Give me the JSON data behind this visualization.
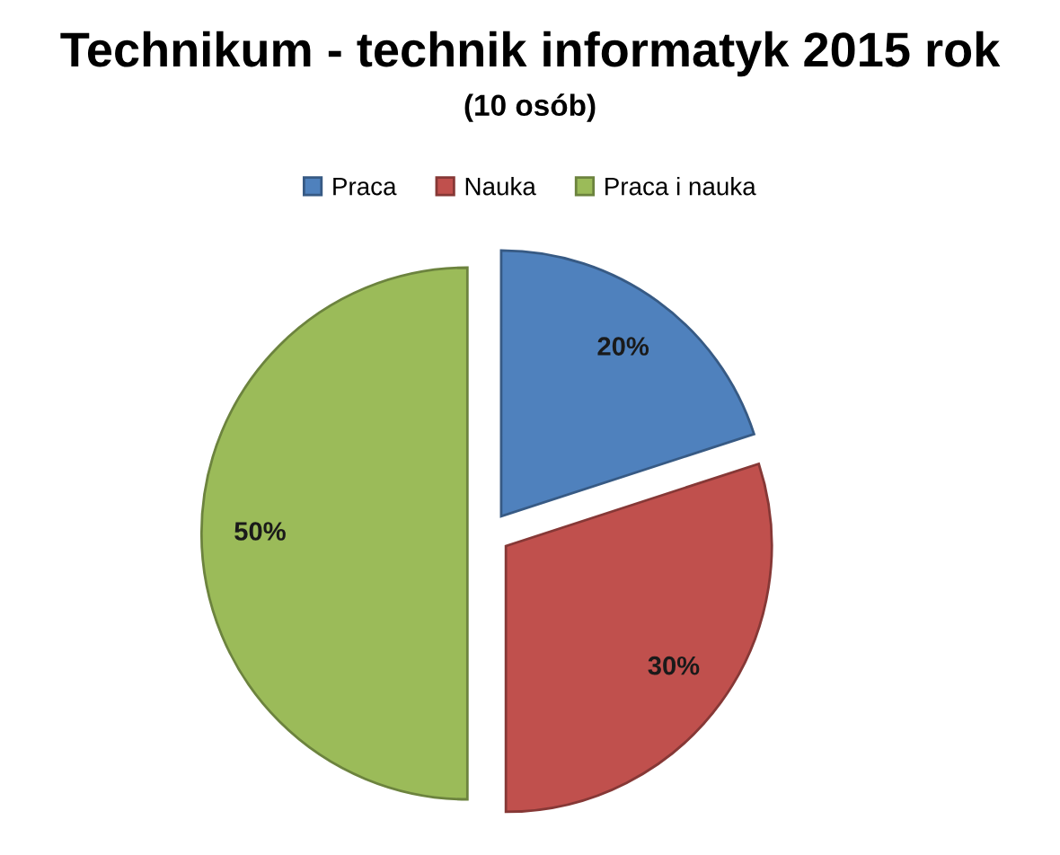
{
  "chart_data": {
    "type": "pie",
    "title": "Technikum - technik informatyk 2015 rok",
    "subtitle": "(10 osób)",
    "categories": [
      "Praca",
      "Nauka",
      "Praca i nauka"
    ],
    "values": [
      20,
      30,
      50
    ],
    "colors": [
      "#4f81bd",
      "#c0504d",
      "#9bbb59"
    ],
    "value_labels": [
      "20%",
      "30%",
      "50%"
    ],
    "legend": "top"
  }
}
